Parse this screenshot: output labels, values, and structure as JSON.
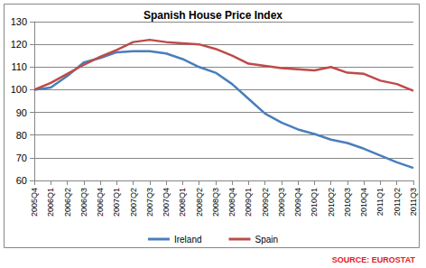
{
  "chart_data": {
    "type": "line",
    "title": "Spanish House Price Index",
    "categories": [
      "2005Q4",
      "2006Q1",
      "2006Q2",
      "2006Q3",
      "2006Q4",
      "2007Q1",
      "2007Q2",
      "2007Q3",
      "2007Q4",
      "2008Q1",
      "2008Q2",
      "2008Q3",
      "2008Q4",
      "2009Q1",
      "2009Q2",
      "2009Q3",
      "2009Q4",
      "2010Q1",
      "2010Q2",
      "2010Q3",
      "2010Q4",
      "2011Q1",
      "2011Q2",
      "2011Q3"
    ],
    "series": [
      {
        "name": "Ireland",
        "color": "#4a7ebb",
        "values": [
          100,
          101,
          106,
          112,
          114,
          116.5,
          117,
          117,
          116,
          113.5,
          110,
          107.5,
          102.5,
          96,
          89.5,
          85.5,
          82.5,
          80.5,
          78,
          76.5,
          74,
          71,
          68,
          65.5
        ]
      },
      {
        "name": "Spain",
        "color": "#be4b48",
        "values": [
          100,
          103,
          107,
          111,
          114.5,
          117.5,
          121,
          122,
          121,
          120.5,
          120,
          118,
          115,
          111.5,
          110.5,
          109.5,
          109,
          108.5,
          110,
          107.5,
          107,
          104,
          102.5,
          99.5
        ]
      }
    ],
    "ylim": [
      60,
      130
    ],
    "yticks": [
      60,
      70,
      80,
      90,
      100,
      110,
      120,
      130
    ],
    "grid": true,
    "legend": "bottom",
    "annotations": [
      "SOURCE: EUROSTAT"
    ]
  }
}
